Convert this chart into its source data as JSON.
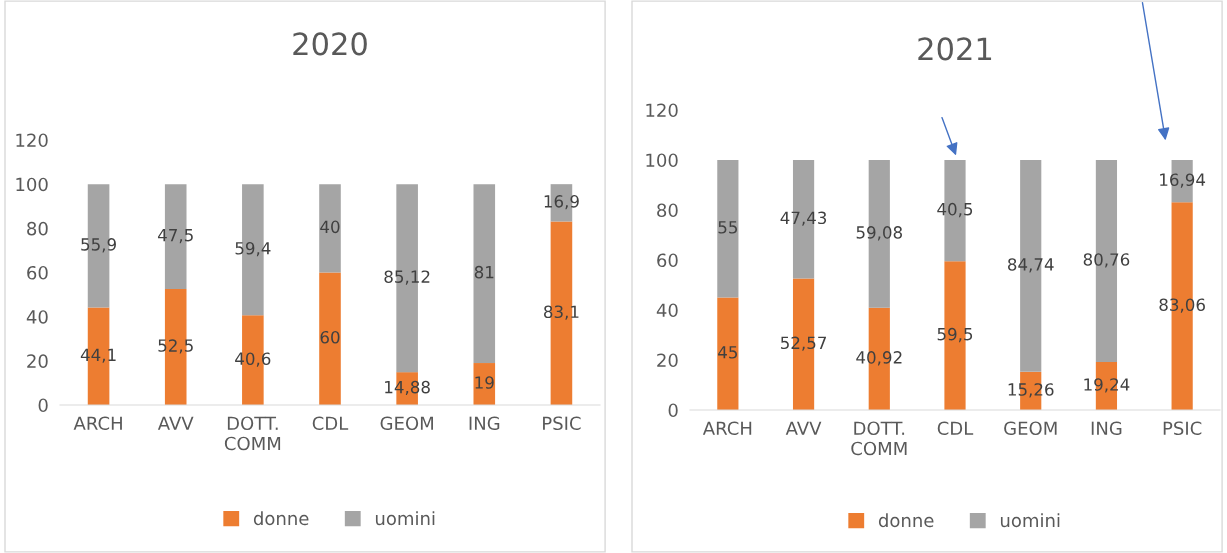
{
  "chart_data": [
    {
      "type": "bar",
      "title": "2020",
      "stacked": true,
      "categories": [
        "ARCH",
        "AVV",
        "DOTT.\nCOMM",
        "CDL",
        "GEOM",
        "ING",
        "PSIC"
      ],
      "ylim": [
        0,
        120
      ],
      "yticks": [
        0,
        20,
        40,
        60,
        80,
        100,
        120
      ],
      "grid": false,
      "legend": "bottom",
      "series": [
        {
          "name": "donne",
          "color": "#ed7d31",
          "values": [
            44.1,
            52.5,
            40.6,
            60,
            14.88,
            19,
            83.1
          ],
          "value_labels": [
            "44,1",
            "52,5",
            "40,6",
            "60",
            "14,88",
            "19",
            "83,1"
          ]
        },
        {
          "name": "uomini",
          "color": "#a5a5a5",
          "values": [
            55.9,
            47.5,
            59.4,
            40,
            85.12,
            81,
            16.9
          ],
          "value_labels": [
            "55,9",
            "47,5",
            "59,4",
            "40",
            "85,12",
            "81",
            "16,9"
          ]
        }
      ]
    },
    {
      "type": "bar",
      "title": "2021",
      "stacked": true,
      "categories": [
        "ARCH",
        "AVV",
        "DOTT.\nCOMM",
        "CDL",
        "GEOM",
        "ING",
        "PSIC"
      ],
      "ylim": [
        0,
        120
      ],
      "yticks": [
        0,
        20,
        40,
        60,
        80,
        100,
        120
      ],
      "grid": false,
      "legend": "bottom",
      "series": [
        {
          "name": "donne",
          "color": "#ed7d31",
          "values": [
            45,
            52.57,
            40.92,
            59.5,
            15.26,
            19.24,
            83.06
          ],
          "value_labels": [
            "45",
            "52,57",
            "40,92",
            "59,5",
            "15,26",
            "19,24",
            "83,06"
          ]
        },
        {
          "name": "uomini",
          "color": "#a5a5a5",
          "values": [
            55,
            47.43,
            59.08,
            40.5,
            84.74,
            80.76,
            16.94
          ],
          "value_labels": [
            "55",
            "47,43",
            "59,08",
            "40,5",
            "84,74",
            "80,76",
            "16,94"
          ]
        }
      ]
    }
  ]
}
